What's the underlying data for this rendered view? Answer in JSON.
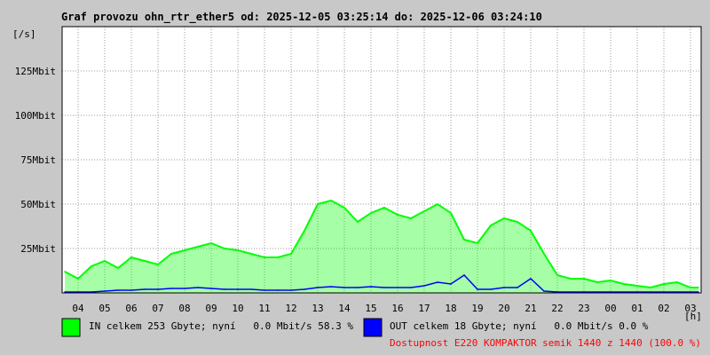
{
  "chart_data": {
    "type": "area",
    "title": "Graf provozu ohn_rtr_ether5 od: 2025-12-05 03:25:14 do: 2025-12-06 03:24:10",
    "ylabel": "[/s]",
    "xunit": "[h]",
    "y_ticks": [
      "25Mbit",
      "50Mbit",
      "75Mbit",
      "100Mbit",
      "125Mbit"
    ],
    "y_tick_values": [
      25,
      50,
      75,
      100,
      125
    ],
    "ylim": [
      0,
      150
    ],
    "x_ticks": [
      "04",
      "05",
      "06",
      "07",
      "08",
      "09",
      "10",
      "11",
      "12",
      "13",
      "14",
      "15",
      "16",
      "17",
      "18",
      "19",
      "20",
      "21",
      "22",
      "23",
      "00",
      "01",
      "02",
      "03"
    ],
    "x_range_hours": [
      3.4,
      27.4
    ],
    "grid": true,
    "series": [
      {
        "name": "IN",
        "color": "#00ff00",
        "legend": "IN celkem 253 Gbyte; nyní   0.0 Mbit/s 58.3 %",
        "x": [
          3.5,
          4.0,
          4.5,
          5.0,
          5.5,
          6.0,
          6.5,
          7.0,
          7.5,
          8.0,
          8.5,
          9.0,
          9.5,
          10.0,
          10.5,
          11.0,
          11.5,
          12.0,
          12.5,
          13.0,
          13.5,
          14.0,
          14.5,
          15.0,
          15.5,
          16.0,
          16.5,
          17.0,
          17.5,
          18.0,
          18.5,
          19.0,
          19.5,
          20.0,
          20.5,
          21.0,
          21.5,
          22.0,
          22.5,
          23.0,
          23.5,
          24.0,
          24.5,
          25.0,
          25.5,
          26.0,
          26.5,
          27.0,
          27.3
        ],
        "values": [
          12,
          8,
          15,
          18,
          14,
          20,
          18,
          16,
          22,
          24,
          26,
          28,
          25,
          24,
          22,
          20,
          20,
          22,
          35,
          50,
          52,
          48,
          40,
          45,
          48,
          44,
          42,
          46,
          50,
          45,
          30,
          28,
          38,
          42,
          40,
          35,
          22,
          10,
          8,
          8,
          6,
          7,
          5,
          4,
          3,
          5,
          6,
          3,
          3
        ]
      },
      {
        "name": "OUT",
        "color": "#0000ff",
        "legend": "OUT celkem 18 Gbyte; nyní   0.0 Mbit/s 0.0 %",
        "x": [
          3.5,
          4.0,
          4.5,
          5.0,
          5.5,
          6.0,
          6.5,
          7.0,
          7.5,
          8.0,
          8.5,
          9.0,
          9.5,
          10.0,
          10.5,
          11.0,
          11.5,
          12.0,
          12.5,
          13.0,
          13.5,
          14.0,
          14.5,
          15.0,
          15.5,
          16.0,
          16.5,
          17.0,
          17.5,
          18.0,
          18.5,
          19.0,
          19.5,
          20.0,
          20.5,
          21.0,
          21.5,
          22.0,
          22.5,
          23.0,
          23.5,
          24.0,
          24.5,
          25.0,
          25.5,
          26.0,
          26.5,
          27.0,
          27.3
        ],
        "values": [
          0.5,
          0.5,
          0.5,
          1,
          1.5,
          1.5,
          2,
          2,
          2.5,
          2.5,
          3,
          2.5,
          2,
          2,
          2,
          1.5,
          1.5,
          1.5,
          2,
          3,
          3.5,
          3,
          3,
          3.5,
          3,
          3,
          3,
          4,
          6,
          5,
          10,
          2,
          2,
          3,
          3,
          8,
          1,
          0.5,
          0.5,
          0.5,
          0.5,
          0.5,
          0.5,
          0.5,
          0.5,
          0.5,
          0.5,
          0.5,
          0.5
        ]
      }
    ],
    "availability": "Dostupnost E220 KOMPAKTOR semik 1440 z 1440 (100.0 %)",
    "availability_color": "#ff0000"
  }
}
